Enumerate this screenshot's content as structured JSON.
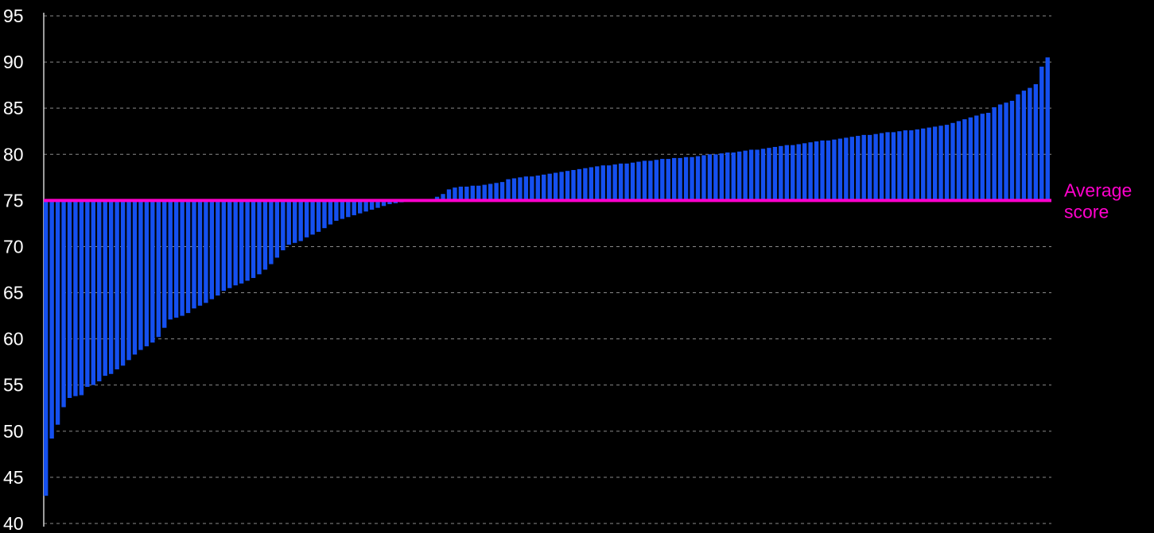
{
  "colors": {
    "background": "#000000",
    "bar": "#1550f0",
    "bar_edge": "#0a2a90",
    "average_line": "#ff00cc",
    "grid": "#8a8a8a",
    "axis_text": "#ffffff"
  },
  "chart_data": {
    "type": "bar",
    "title": "",
    "xlabel": "",
    "ylabel": "",
    "ylim": [
      40,
      95
    ],
    "yticks": [
      "95",
      "90",
      "85",
      "80",
      "75",
      "70",
      "65",
      "60",
      "55",
      "50",
      "45",
      "40"
    ],
    "grid": true,
    "baseline": 75,
    "average_line": {
      "value": 75,
      "label_lines": [
        "Average",
        "score"
      ]
    },
    "values": [
      43.0,
      49.2,
      50.7,
      52.6,
      53.6,
      53.8,
      53.9,
      54.8,
      55.0,
      55.4,
      56.0,
      56.2,
      56.7,
      57.1,
      57.7,
      58.3,
      58.8,
      59.2,
      59.6,
      60.2,
      61.2,
      62.1,
      62.3,
      62.5,
      62.8,
      63.3,
      63.6,
      63.9,
      64.3,
      64.7,
      65.2,
      65.5,
      65.8,
      66.0,
      66.3,
      66.6,
      67.0,
      67.5,
      68.1,
      68.8,
      69.6,
      70.2,
      70.4,
      70.6,
      71.0,
      71.3,
      71.6,
      72.0,
      72.4,
      72.8,
      73.0,
      73.2,
      73.4,
      73.6,
      73.8,
      74.0,
      74.2,
      74.4,
      74.6,
      74.7,
      74.8,
      74.9,
      75.0,
      75.0,
      75.0,
      75.1,
      75.4,
      75.7,
      76.2,
      76.4,
      76.5,
      76.5,
      76.6,
      76.6,
      76.7,
      76.8,
      76.9,
      77.0,
      77.3,
      77.4,
      77.5,
      77.6,
      77.6,
      77.7,
      77.8,
      77.9,
      78.0,
      78.1,
      78.2,
      78.3,
      78.4,
      78.5,
      78.6,
      78.7,
      78.8,
      78.8,
      78.9,
      79.0,
      79.0,
      79.1,
      79.2,
      79.3,
      79.3,
      79.4,
      79.5,
      79.5,
      79.6,
      79.6,
      79.7,
      79.7,
      79.8,
      79.9,
      80.0,
      80.0,
      80.1,
      80.2,
      80.2,
      80.3,
      80.4,
      80.5,
      80.5,
      80.6,
      80.7,
      80.8,
      80.9,
      81.0,
      81.0,
      81.1,
      81.2,
      81.3,
      81.4,
      81.5,
      81.5,
      81.6,
      81.7,
      81.8,
      81.9,
      82.0,
      82.1,
      82.1,
      82.2,
      82.3,
      82.4,
      82.4,
      82.5,
      82.6,
      82.6,
      82.7,
      82.8,
      82.9,
      83.0,
      83.1,
      83.2,
      83.4,
      83.6,
      83.8,
      84.0,
      84.2,
      84.4,
      84.5,
      85.1,
      85.4,
      85.6,
      85.8,
      86.5,
      86.9,
      87.2,
      87.6,
      89.5,
      90.5
    ]
  }
}
